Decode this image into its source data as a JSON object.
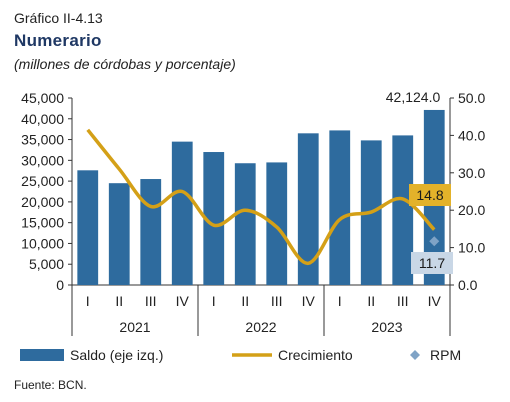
{
  "header": {
    "figure_label": "Gráfico II-4.13",
    "title": "Numerario",
    "subtitle": "(millones de córdobas y porcentaje)"
  },
  "source": "Fuente: BCN.",
  "colors": {
    "bar": "#2e6b9e",
    "line": "#d4a017",
    "rpm": "#7fa3c6",
    "label_bg_line": "#e3b22a",
    "label_bg_rpm": "#c9d7e6"
  },
  "chart_data": {
    "type": "bar",
    "quarters": [
      "I",
      "II",
      "III",
      "IV",
      "I",
      "II",
      "III",
      "IV",
      "I",
      "II",
      "III",
      "IV"
    ],
    "years": [
      "2021",
      "2022",
      "2023"
    ],
    "left_axis": {
      "min": 0,
      "max": 45000,
      "ticks": [
        "0",
        "5,000",
        "10,000",
        "15,000",
        "20,000",
        "25,000",
        "30,000",
        "35,000",
        "40,000",
        "45,000"
      ]
    },
    "right_axis": {
      "min": 0,
      "max": 50,
      "ticks": [
        "0.0",
        "10.0",
        "20.0",
        "30.0",
        "40.0",
        "50.0"
      ]
    },
    "series": [
      {
        "name": "Saldo (eje izq.)",
        "type": "bar",
        "axis": "left",
        "values": [
          27600,
          24500,
          25500,
          34500,
          32000,
          29300,
          29500,
          36500,
          37200,
          34800,
          36000,
          42124
        ]
      },
      {
        "name": "Crecimiento",
        "type": "line",
        "axis": "right",
        "values": [
          41.5,
          31.0,
          21.0,
          25.0,
          16.0,
          20.0,
          15.5,
          5.8,
          17.5,
          19.5,
          23.0,
          14.8
        ]
      },
      {
        "name": "RPM",
        "type": "scatter",
        "axis": "right",
        "x_index": 11,
        "value": 11.7
      }
    ],
    "annotations": [
      {
        "text": "42,124.0",
        "target": "bar-12"
      },
      {
        "text": "14.8",
        "target": "line-12"
      },
      {
        "text": "11.7",
        "target": "rpm"
      }
    ]
  }
}
